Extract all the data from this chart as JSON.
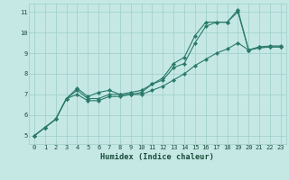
{
  "xlabel": "Humidex (Indice chaleur)",
  "bg_color": "#c5e8e5",
  "grid_color": "#9ecec8",
  "line_color": "#2a7a6a",
  "xlim": [
    -0.5,
    23.5
  ],
  "ylim": [
    4.6,
    11.4
  ],
  "xticks": [
    0,
    1,
    2,
    3,
    4,
    5,
    6,
    7,
    8,
    9,
    10,
    11,
    12,
    13,
    14,
    15,
    16,
    17,
    18,
    19,
    20,
    21,
    22,
    23
  ],
  "yticks": [
    5,
    6,
    7,
    8,
    9,
    10,
    11
  ],
  "line1_x": [
    0,
    1,
    2,
    3,
    4,
    5,
    6,
    7,
    8,
    9,
    10,
    11,
    12,
    13,
    14,
    15,
    16,
    17,
    18,
    19,
    20,
    21,
    22,
    23
  ],
  "line1_y": [
    5.0,
    5.4,
    5.8,
    6.8,
    7.2,
    6.8,
    6.8,
    7.0,
    7.0,
    7.0,
    7.1,
    7.5,
    7.7,
    8.3,
    8.5,
    9.5,
    10.3,
    10.5,
    10.5,
    11.0,
    9.15,
    9.3,
    9.3,
    9.3
  ],
  "line2_x": [
    0,
    1,
    2,
    3,
    4,
    5,
    6,
    7,
    8,
    9,
    10,
    11,
    12,
    13,
    14,
    15,
    16,
    17,
    18,
    19,
    20,
    21,
    22,
    23
  ],
  "line2_y": [
    5.0,
    5.4,
    5.8,
    6.8,
    7.3,
    6.9,
    7.1,
    7.2,
    7.0,
    7.1,
    7.2,
    7.5,
    7.8,
    8.5,
    8.8,
    9.85,
    10.5,
    10.5,
    10.5,
    11.1,
    9.15,
    9.3,
    9.35,
    9.35
  ],
  "line3_x": [
    0,
    1,
    2,
    3,
    4,
    5,
    6,
    7,
    8,
    9,
    10,
    11,
    12,
    13,
    14,
    15,
    16,
    17,
    18,
    19,
    20,
    21,
    22,
    23
  ],
  "line3_y": [
    5.0,
    5.4,
    5.8,
    6.8,
    7.0,
    6.7,
    6.7,
    6.9,
    6.9,
    7.0,
    7.0,
    7.2,
    7.4,
    7.7,
    8.0,
    8.4,
    8.7,
    9.0,
    9.2,
    9.5,
    9.15,
    9.25,
    9.3,
    9.3
  ],
  "tick_fontsize": 5.0,
  "xlabel_fontsize": 6.2
}
